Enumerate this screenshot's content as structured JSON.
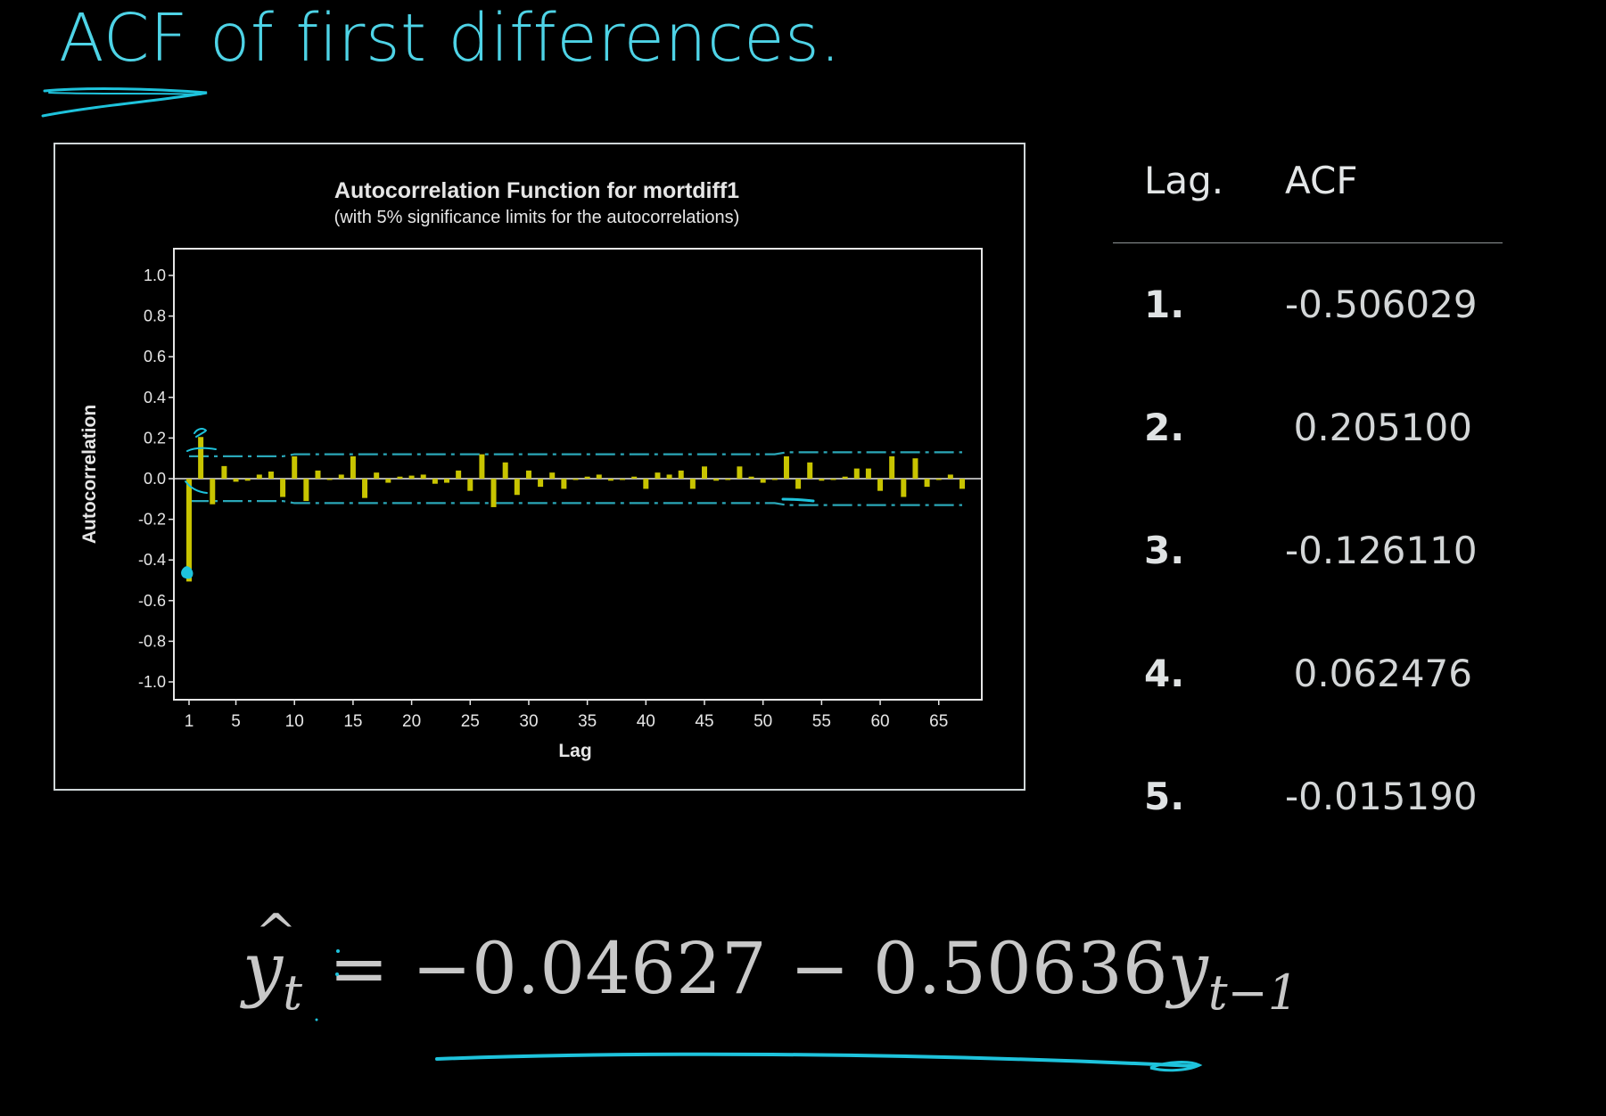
{
  "slide": {
    "title": "ACF of first differences."
  },
  "chart_data": {
    "type": "bar",
    "title": "Autocorrelation Function for mortdiff1",
    "subtitle": "(with 5% significance limits for the autocorrelations)",
    "xlabel": "Lag",
    "ylabel": "Autocorrelation",
    "ylim": [
      -1.0,
      1.0
    ],
    "yticks": [
      "1.0",
      "0.8",
      "0.6",
      "0.4",
      "0.2",
      "0.0",
      "-0.2",
      "-0.4",
      "-0.6",
      "-0.8",
      "-1.0"
    ],
    "xlim": [
      1,
      67
    ],
    "xticks": [
      1,
      5,
      10,
      15,
      20,
      25,
      30,
      35,
      40,
      45,
      50,
      55,
      60,
      65
    ],
    "series": [
      {
        "values": [
          -0.506,
          0.205,
          -0.126,
          0.062,
          -0.015,
          -0.01,
          0.02,
          0.035,
          -0.09,
          0.11,
          -0.11,
          0.04,
          0.0,
          0.02,
          0.11,
          -0.095,
          0.03,
          -0.02,
          0.01,
          0.015,
          0.02,
          -0.025,
          -0.02,
          0.04,
          -0.06,
          0.12,
          -0.14,
          0.08,
          -0.08,
          0.04,
          -0.04,
          0.03,
          -0.05,
          0.0,
          0.01,
          0.02,
          -0.01,
          0.0,
          0.01,
          -0.05,
          0.03,
          0.02,
          0.04,
          -0.05,
          0.06,
          -0.01,
          0.0,
          0.06,
          0.01,
          -0.02,
          0.0,
          0.11,
          -0.05,
          0.08,
          -0.01,
          0.0,
          0.01,
          0.05,
          0.05,
          -0.06,
          0.11,
          -0.09,
          0.1,
          -0.04,
          0.0,
          0.02,
          -0.05
        ]
      }
    ],
    "significance_limits": {
      "upper": [
        0.11,
        0.11,
        0.11,
        0.11,
        0.11,
        0.11,
        0.11,
        0.11,
        0.11,
        0.12,
        0.12,
        0.12,
        0.12,
        0.12,
        0.12,
        0.12,
        0.12,
        0.12,
        0.12,
        0.12,
        0.12,
        0.12,
        0.12,
        0.12,
        0.12,
        0.12,
        0.12,
        0.12,
        0.12,
        0.12,
        0.12,
        0.12,
        0.12,
        0.12,
        0.12,
        0.12,
        0.12,
        0.12,
        0.12,
        0.12,
        0.12,
        0.12,
        0.12,
        0.12,
        0.12,
        0.12,
        0.12,
        0.12,
        0.12,
        0.12,
        0.12,
        0.13,
        0.13,
        0.13,
        0.13,
        0.13,
        0.13,
        0.13,
        0.13,
        0.13,
        0.13,
        0.13,
        0.13,
        0.13,
        0.13,
        0.13,
        0.13
      ],
      "lower": [
        -0.11,
        -0.11,
        -0.11,
        -0.11,
        -0.11,
        -0.11,
        -0.11,
        -0.11,
        -0.11,
        -0.12,
        -0.12,
        -0.12,
        -0.12,
        -0.12,
        -0.12,
        -0.12,
        -0.12,
        -0.12,
        -0.12,
        -0.12,
        -0.12,
        -0.12,
        -0.12,
        -0.12,
        -0.12,
        -0.12,
        -0.12,
        -0.12,
        -0.12,
        -0.12,
        -0.12,
        -0.12,
        -0.12,
        -0.12,
        -0.12,
        -0.12,
        -0.12,
        -0.12,
        -0.12,
        -0.12,
        -0.12,
        -0.12,
        -0.12,
        -0.12,
        -0.12,
        -0.12,
        -0.12,
        -0.12,
        -0.12,
        -0.12,
        -0.12,
        -0.13,
        -0.13,
        -0.13,
        -0.13,
        -0.13,
        -0.13,
        -0.13,
        -0.13,
        -0.13,
        -0.13,
        -0.13,
        -0.13,
        -0.13,
        -0.13,
        -0.13,
        -0.13
      ]
    },
    "colors": {
      "bars": "#c8c400",
      "limits": "#2aa7b8",
      "axes": "#e6e6e6",
      "text": "#e6e6e6"
    }
  },
  "table": {
    "headers": {
      "lag": "Lag.",
      "acf": "ACF"
    },
    "rows": [
      {
        "lag": "1.",
        "acf": "-0.506029"
      },
      {
        "lag": "2.",
        "acf": "0.205100"
      },
      {
        "lag": "3.",
        "acf": "-0.126110"
      },
      {
        "lag": "4.",
        "acf": "0.062476"
      },
      {
        "lag": "5.",
        "acf": "-0.015190"
      }
    ]
  },
  "equation": {
    "lhs_var": "y",
    "lhs_sub": "t",
    "equals": "=",
    "intercept": "−0.04627",
    "minus": "−",
    "coef": "0.50636",
    "rhs_var": "y",
    "rhs_sub": "t−1"
  },
  "annotation": {
    "color": "#1ec3dc"
  }
}
